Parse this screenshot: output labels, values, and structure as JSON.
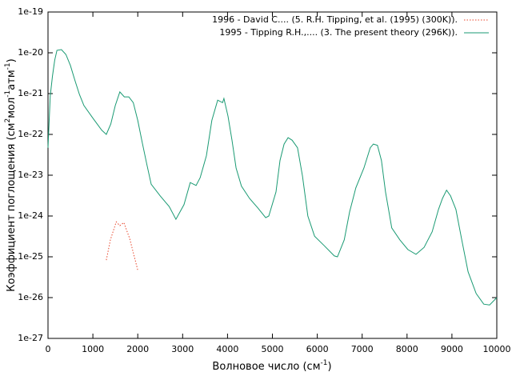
{
  "chart_data": {
    "type": "line",
    "xlabel": [
      "Волновое число (см",
      "-1",
      ")"
    ],
    "ylabel": [
      "Коэффициент поглощения (см",
      "2",
      "мол",
      "-1",
      "атм",
      "-1",
      ")"
    ],
    "xlim": [
      0,
      10000
    ],
    "xticks": [
      0,
      1000,
      2000,
      3000,
      4000,
      5000,
      6000,
      7000,
      8000,
      9000,
      10000
    ],
    "ylim": [
      1e-27,
      1e-19
    ],
    "ylog": true,
    "yticks": [
      {
        "value": 1e-27,
        "label": "1e-27"
      },
      {
        "value": 1e-26,
        "label": "1e-26"
      },
      {
        "value": 1e-25,
        "label": "1e-25"
      },
      {
        "value": 1e-24,
        "label": "1e-24"
      },
      {
        "value": 1e-23,
        "label": "1e-23"
      },
      {
        "value": 1e-22,
        "label": "1e-22"
      },
      {
        "value": 1e-21,
        "label": "1e-21"
      },
      {
        "value": 1e-20,
        "label": "1e-20"
      },
      {
        "value": 1e-19,
        "label": "1e-19"
      }
    ],
    "legend": "top-right",
    "series": [
      {
        "name": "1996 - David C.... (5. R.H. Tipping, et al. (1995) (300K)).",
        "color": "#e8472c",
        "dash": "dotted",
        "x": [
          1300,
          1390,
          1520,
          1600,
          1690,
          1820,
          2000
        ],
        "values": [
          8.3e-26,
          2.6e-25,
          7.2e-25,
          5.8e-25,
          6.9e-25,
          2.8e-25,
          4.7e-26
        ]
      },
      {
        "name": "1995 - Tipping R.H.,.... (3. The present theory (296K)).",
        "color": "#1a9a73",
        "dash": "solid",
        "x": [
          0,
          50,
          100,
          150,
          200,
          300,
          400,
          500,
          600,
          700,
          800,
          1000,
          1200,
          1300,
          1400,
          1500,
          1600,
          1700,
          1800,
          1900,
          2000,
          2100,
          2200,
          2300,
          2500,
          2700,
          2850,
          3030,
          3170,
          3300,
          3390,
          3530,
          3650,
          3780,
          3890,
          3920,
          4010,
          4100,
          4190,
          4310,
          4490,
          4670,
          4850,
          4920,
          5080,
          5170,
          5260,
          5350,
          5440,
          5560,
          5670,
          5790,
          5940,
          6150,
          6380,
          6450,
          6600,
          6720,
          6860,
          7040,
          7180,
          7250,
          7340,
          7430,
          7520,
          7660,
          7840,
          8020,
          8200,
          8380,
          8560,
          8700,
          8790,
          8880,
          8970,
          9090,
          9220,
          9360,
          9540,
          9710,
          9840,
          10000
        ],
        "values": [
          4.7e-23,
          8.7e-22,
          2.7e-21,
          6.6e-21,
          1.15e-20,
          1.2e-20,
          9.1e-21,
          4.9e-21,
          2.1e-21,
          9.5e-22,
          5.1e-22,
          2.5e-22,
          1.26e-22,
          1e-22,
          1.8e-22,
          5.1e-22,
          1.1e-21,
          8.3e-22,
          8.3e-22,
          6e-22,
          2.2e-22,
          6.3e-23,
          1.9e-23,
          6e-24,
          3.1e-24,
          1.7e-24,
          8.3e-25,
          1.9e-24,
          6.6e-24,
          5.6e-24,
          8.7e-24,
          3e-23,
          2.2e-22,
          6.9e-22,
          6e-22,
          7.6e-22,
          2.8e-22,
          7.2e-23,
          1.5e-23,
          5.4e-24,
          2.7e-24,
          1.6e-24,
          9.1e-25,
          1e-24,
          3.9e-24,
          2.3e-23,
          5.8e-23,
          8.3e-23,
          7.2e-23,
          4.7e-23,
          9.5e-24,
          1e-24,
          3.2e-25,
          1.9e-25,
          1.05e-25,
          1e-25,
          2.6e-25,
          1.26e-24,
          4.9e-24,
          1.5e-23,
          4.7e-23,
          5.8e-23,
          5.4e-23,
          2.3e-23,
          3.9e-24,
          5.1e-25,
          2.6e-25,
          1.5e-25,
          1.15e-25,
          1.7e-25,
          4.1e-25,
          1.45e-24,
          2.7e-24,
          4.3e-24,
          3.1e-24,
          1.45e-24,
          2.6e-25,
          4.3e-26,
          1.26e-26,
          6.9e-27,
          6.6e-27,
          1e-26
        ]
      }
    ]
  }
}
